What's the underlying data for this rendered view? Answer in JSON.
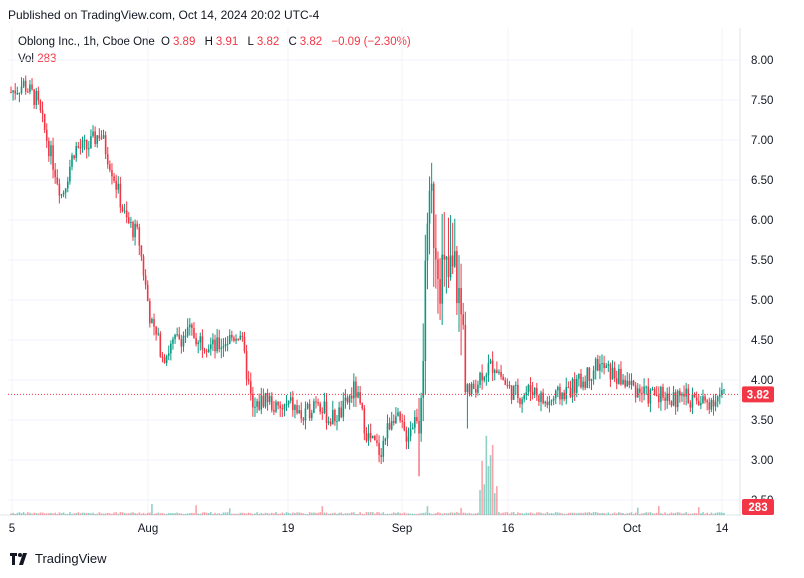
{
  "header": {
    "published": "Published on TradingView.com, Oct 14, 2024 20:02 UTC-4"
  },
  "legend": {
    "symbol": "Oblong Inc., 1h, Cboe One",
    "o_label": "O",
    "o": "3.89",
    "h_label": "H",
    "h": "3.91",
    "l_label": "L",
    "l": "3.82",
    "c_label": "C",
    "c": "3.82",
    "change": "−0.09 (−2.30%)",
    "vol_label": "Vol",
    "vol": "283"
  },
  "footer": {
    "brand": "TradingView",
    "logo": "TV-logo-icon"
  },
  "colors": {
    "up": "#089981",
    "down": "#f23645",
    "grid": "#f0f3fa",
    "price_line": "#f23645"
  },
  "chart_data": {
    "type": "candlestick",
    "title": "Oblong Inc., 1h, Cboe One",
    "y_ticks": [
      "8.00",
      "7.50",
      "7.00",
      "6.50",
      "6.00",
      "5.50",
      "5.00",
      "4.50",
      "4.00",
      "3.50",
      "3.00",
      "2.50"
    ],
    "ylim": [
      2.3,
      8.25
    ],
    "x_ticks": [
      "5",
      "Aug",
      "19",
      "Sep",
      "16",
      "Oct",
      "14"
    ],
    "current_price": "3.82",
    "current_volume": "283",
    "price_path": [
      {
        "date": "Jul 25",
        "close": 7.6
      },
      {
        "date": "Jul 26",
        "close": 7.7
      },
      {
        "date": "Jul 29",
        "close": 7.5
      },
      {
        "date": "Jul 30",
        "close": 6.9
      },
      {
        "date": "Jul 31",
        "close": 6.3
      },
      {
        "date": "Aug 1",
        "close": 6.9
      },
      {
        "date": "Aug 2",
        "close": 6.9
      },
      {
        "date": "Aug 5",
        "close": 7.1
      },
      {
        "date": "Aug 6",
        "close": 6.6
      },
      {
        "date": "Aug 7",
        "close": 6.0
      },
      {
        "date": "Aug 8",
        "close": 5.8
      },
      {
        "date": "Aug 9",
        "close": 4.7
      },
      {
        "date": "Aug 12",
        "close": 4.3
      },
      {
        "date": "Aug 13",
        "close": 4.5
      },
      {
        "date": "Aug 14",
        "close": 4.6
      },
      {
        "date": "Aug 15",
        "close": 4.5
      },
      {
        "date": "Aug 16",
        "close": 4.4
      },
      {
        "date": "Aug 19",
        "close": 4.5
      },
      {
        "date": "Aug 20",
        "close": 4.6
      },
      {
        "date": "Aug 21",
        "close": 3.6
      },
      {
        "date": "Aug 22",
        "close": 3.8
      },
      {
        "date": "Aug 23",
        "close": 3.6
      },
      {
        "date": "Aug 26",
        "close": 3.7
      },
      {
        "date": "Aug 27",
        "close": 3.5
      },
      {
        "date": "Aug 28",
        "close": 3.8
      },
      {
        "date": "Aug 29",
        "close": 3.5
      },
      {
        "date": "Aug 30",
        "close": 3.6
      },
      {
        "date": "Sep 3",
        "close": 3.9
      },
      {
        "date": "Sep 4",
        "close": 3.3
      },
      {
        "date": "Sep 5",
        "close": 3.1
      },
      {
        "date": "Sep 6",
        "close": 3.6
      },
      {
        "date": "Sep 9",
        "close": 3.3
      },
      {
        "date": "Sep 10",
        "close": 3.6
      },
      {
        "date": "Sep 11",
        "close": 6.2
      },
      {
        "date": "Sep 12",
        "close": 5.2
      },
      {
        "date": "Sep 13",
        "close": 5.3
      },
      {
        "date": "Sep 16",
        "close": 3.8
      },
      {
        "date": "Sep 17",
        "close": 4.1
      },
      {
        "date": "Sep 18",
        "close": 4.2
      },
      {
        "date": "Sep 19",
        "close": 3.9
      },
      {
        "date": "Sep 20",
        "close": 3.8
      },
      {
        "date": "Sep 23",
        "close": 3.9
      },
      {
        "date": "Sep 24",
        "close": 3.7
      },
      {
        "date": "Sep 25",
        "close": 3.8
      },
      {
        "date": "Sep 26",
        "close": 3.9
      },
      {
        "date": "Sep 27",
        "close": 4.0
      },
      {
        "date": "Sep 30",
        "close": 4.2
      },
      {
        "date": "Oct 1",
        "close": 4.1
      },
      {
        "date": "Oct 2",
        "close": 4.0
      },
      {
        "date": "Oct 3",
        "close": 3.9
      },
      {
        "date": "Oct 4",
        "close": 3.8
      },
      {
        "date": "Oct 7",
        "close": 3.85
      },
      {
        "date": "Oct 8",
        "close": 3.75
      },
      {
        "date": "Oct 9",
        "close": 3.8
      },
      {
        "date": "Oct 10",
        "close": 3.7
      },
      {
        "date": "Oct 11",
        "close": 3.75
      },
      {
        "date": "Oct 14",
        "close": 3.82
      }
    ]
  }
}
